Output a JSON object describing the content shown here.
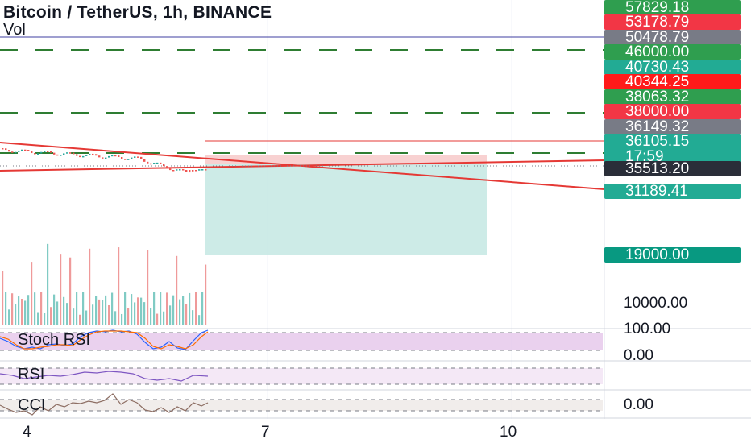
{
  "header": {
    "title": "Bitcoin / TetherUS, 1h, BINANCE",
    "volume_label": "Vol"
  },
  "price_tags": [
    {
      "value": "57829.18",
      "color": "#2f9e4f"
    },
    {
      "value": "53178.79",
      "color": "#f23645"
    },
    {
      "value": "50478.79",
      "color": "#787b86"
    },
    {
      "value": "46000.00",
      "color": "#2f9e4f"
    },
    {
      "value": "40730.43",
      "color": "#22ab94"
    },
    {
      "value": "40344.25",
      "color": "#ff1a1a"
    },
    {
      "value": "38063.32",
      "color": "#2f9e4f"
    },
    {
      "value": "38000.00",
      "color": "#f23645"
    },
    {
      "value": "36149.32",
      "color": "#787b86"
    },
    {
      "value": "36105.15",
      "sub": "17:59",
      "color": "#22ab94"
    },
    {
      "value": "35513.20",
      "color": "#2a2e39"
    },
    {
      "value": "31189.41",
      "color": "#22ab94"
    },
    {
      "value": "19000.00",
      "color": "#089981"
    }
  ],
  "price_axis_labels": [
    "10000.00"
  ],
  "indicators": [
    {
      "name": "Stoch RSI",
      "axis": [
        "100.00",
        "0.00"
      ],
      "color": "#e1bee7"
    },
    {
      "name": "RSI",
      "axis": [],
      "color": "#f3e5f5"
    },
    {
      "name": "CCI",
      "axis": [
        "0.00"
      ],
      "color": "#efebe9"
    }
  ],
  "x_axis": [
    "4",
    "7",
    "10"
  ]
}
